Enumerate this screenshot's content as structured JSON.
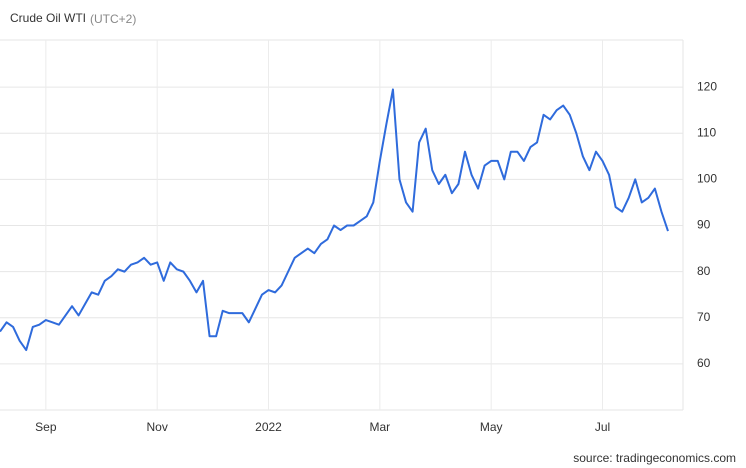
{
  "chart_data": {
    "type": "line",
    "title": "Crude Oil WTI",
    "subtitle": "(UTC+2)",
    "source": "source: tradingeconomics.com",
    "color": "#2f6bdc",
    "grid": true,
    "ylim": [
      50,
      130
    ],
    "yticks": [
      60,
      70,
      80,
      90,
      100,
      110,
      120
    ],
    "categories": [
      null,
      null,
      null,
      null,
      null,
      null,
      null,
      "Sep",
      null,
      null,
      null,
      null,
      null,
      null,
      null,
      null,
      null,
      null,
      null,
      null,
      null,
      null,
      null,
      null,
      "Nov",
      null,
      null,
      null,
      null,
      null,
      null,
      null,
      null,
      null,
      null,
      null,
      null,
      null,
      null,
      null,
      null,
      "2022",
      null,
      null,
      null,
      null,
      null,
      null,
      null,
      null,
      null,
      null,
      null,
      null,
      null,
      null,
      null,
      null,
      "Mar",
      null,
      null,
      null,
      null,
      null,
      null,
      null,
      null,
      null,
      null,
      null,
      null,
      null,
      null,
      null,
      null,
      "May",
      null,
      null,
      null,
      null,
      null,
      null,
      null,
      null,
      null,
      null,
      null,
      null,
      null,
      null,
      null,
      null,
      "Jul",
      null,
      null,
      null,
      null,
      null,
      null,
      null,
      null,
      null,
      null
    ],
    "values": [
      67,
      69,
      68,
      65,
      63,
      68,
      68.5,
      69.5,
      69,
      68.5,
      70.5,
      72.5,
      70.5,
      73,
      75.5,
      75,
      78,
      79,
      80.5,
      80,
      81.5,
      82,
      83,
      81.5,
      82,
      78,
      82,
      80.5,
      80,
      78,
      75.5,
      78,
      66,
      66,
      71.5,
      71,
      71,
      71,
      69,
      72,
      75,
      76,
      75.5,
      77,
      80,
      83,
      84,
      85,
      84,
      86,
      87,
      90,
      89,
      90,
      90,
      91,
      92,
      95,
      104,
      112,
      119.5,
      100,
      95,
      93,
      108,
      111,
      102,
      99,
      101,
      97,
      99,
      106,
      101,
      98,
      103,
      104,
      104,
      100,
      106,
      106,
      104,
      107,
      108,
      114,
      113,
      115,
      116,
      114,
      110,
      105,
      102,
      106,
      104,
      101,
      94,
      93,
      96,
      100,
      95,
      96,
      98,
      93,
      88.8
    ]
  }
}
